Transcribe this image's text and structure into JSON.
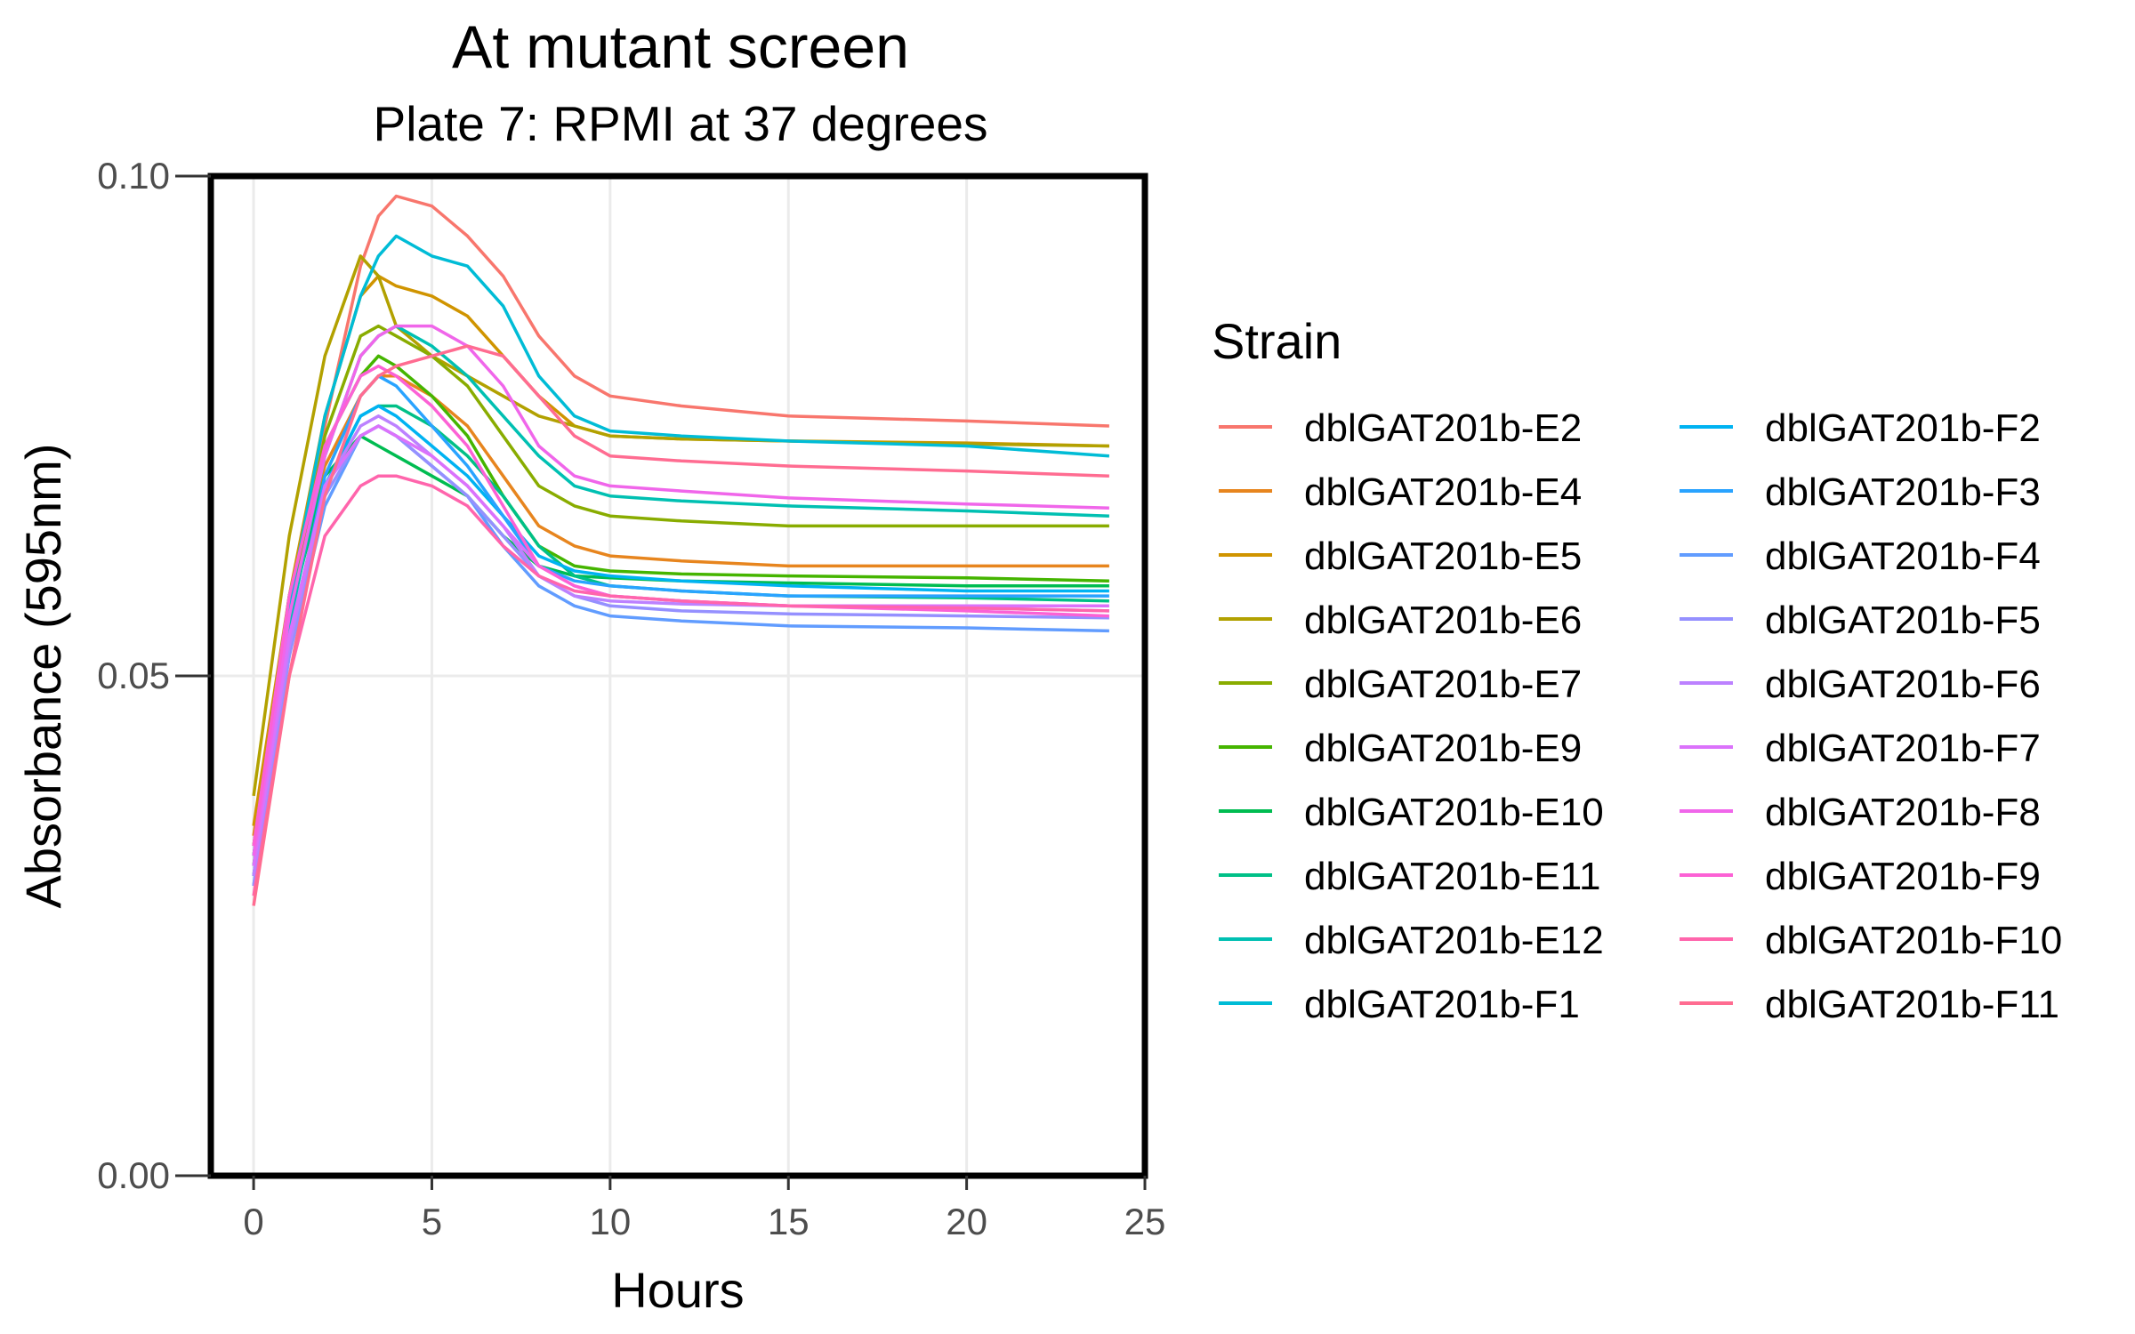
{
  "chart_data": {
    "type": "line",
    "title": "At mutant screen",
    "subtitle": "Plate 7: RPMI at 37 degrees",
    "xlabel": "Hours",
    "ylabel": "Absorbance (595nm)",
    "xlim": [
      -1.2,
      25
    ],
    "ylim": [
      0,
      0.1
    ],
    "x_ticks": [
      0,
      5,
      10,
      15,
      20,
      25
    ],
    "x_tick_labels": [
      "0",
      "5",
      "10",
      "15",
      "20",
      "25"
    ],
    "y_ticks": [
      0,
      0.05,
      0.1
    ],
    "y_tick_labels": [
      "0.00",
      "0.05",
      "0.10"
    ],
    "grid": true,
    "legend_title": "Strain",
    "legend_position": "right",
    "x": [
      0,
      1,
      2,
      3,
      3.5,
      4,
      5,
      6,
      7,
      8,
      9,
      10,
      12,
      15,
      20,
      24
    ],
    "series": [
      {
        "name": "dblGAT201b-E2",
        "color": "#F8766D",
        "values": [
          0.033,
          0.055,
          0.075,
          0.091,
          0.096,
          0.098,
          0.097,
          0.094,
          0.09,
          0.084,
          0.08,
          0.078,
          0.077,
          0.076,
          0.0755,
          0.075
        ]
      },
      {
        "name": "dblGAT201b-E4",
        "color": "#E7851E",
        "values": [
          0.034,
          0.057,
          0.071,
          0.078,
          0.08,
          0.08,
          0.078,
          0.075,
          0.07,
          0.065,
          0.063,
          0.062,
          0.0615,
          0.061,
          0.061,
          0.061
        ]
      },
      {
        "name": "dblGAT201b-E5",
        "color": "#D09400",
        "values": [
          0.035,
          0.058,
          0.076,
          0.088,
          0.09,
          0.089,
          0.088,
          0.086,
          0.082,
          0.078,
          0.075,
          0.074,
          0.0737,
          0.0735,
          0.0733,
          0.073
        ]
      },
      {
        "name": "dblGAT201b-E6",
        "color": "#B2A100",
        "values": [
          0.038,
          0.064,
          0.082,
          0.092,
          0.09,
          0.085,
          0.082,
          0.08,
          0.078,
          0.076,
          0.075,
          0.074,
          0.0737,
          0.0735,
          0.0732,
          0.073
        ]
      },
      {
        "name": "dblGAT201b-E7",
        "color": "#89AC00",
        "values": [
          0.031,
          0.056,
          0.074,
          0.084,
          0.085,
          0.084,
          0.082,
          0.079,
          0.074,
          0.069,
          0.067,
          0.066,
          0.0655,
          0.065,
          0.065,
          0.065
        ]
      },
      {
        "name": "dblGAT201b-E9",
        "color": "#45B500",
        "values": [
          0.033,
          0.058,
          0.073,
          0.08,
          0.082,
          0.081,
          0.078,
          0.074,
          0.068,
          0.063,
          0.061,
          0.0605,
          0.0602,
          0.06,
          0.0598,
          0.0595
        ]
      },
      {
        "name": "dblGAT201b-E10",
        "color": "#00BC51",
        "values": [
          0.032,
          0.056,
          0.07,
          0.074,
          0.073,
          0.072,
          0.07,
          0.068,
          0.064,
          0.061,
          0.06,
          0.0598,
          0.0595,
          0.0593,
          0.059,
          0.059
        ]
      },
      {
        "name": "dblGAT201b-E11",
        "color": "#00C087",
        "values": [
          0.03,
          0.053,
          0.069,
          0.076,
          0.077,
          0.077,
          0.075,
          0.072,
          0.068,
          0.063,
          0.06,
          0.059,
          0.0585,
          0.058,
          0.0578,
          0.0575
        ]
      },
      {
        "name": "dblGAT201b-E12",
        "color": "#00C0B2",
        "values": [
          0.031,
          0.055,
          0.072,
          0.082,
          0.084,
          0.085,
          0.083,
          0.08,
          0.076,
          0.072,
          0.069,
          0.068,
          0.0675,
          0.067,
          0.0665,
          0.066
        ]
      },
      {
        "name": "dblGAT201b-F1",
        "color": "#00BCD6",
        "values": [
          0.032,
          0.057,
          0.076,
          0.088,
          0.092,
          0.094,
          0.092,
          0.091,
          0.087,
          0.08,
          0.076,
          0.0745,
          0.074,
          0.0735,
          0.073,
          0.072
        ]
      },
      {
        "name": "dblGAT201b-F2",
        "color": "#00B3F2",
        "values": [
          0.03,
          0.054,
          0.069,
          0.076,
          0.077,
          0.076,
          0.073,
          0.07,
          0.066,
          0.062,
          0.0605,
          0.06,
          0.0595,
          0.059,
          0.0585,
          0.0585
        ]
      },
      {
        "name": "dblGAT201b-F3",
        "color": "#29A3FF",
        "values": [
          0.029,
          0.053,
          0.07,
          0.078,
          0.08,
          0.079,
          0.075,
          0.071,
          0.066,
          0.061,
          0.0595,
          0.059,
          0.0585,
          0.058,
          0.058,
          0.058
        ]
      },
      {
        "name": "dblGAT201b-F4",
        "color": "#619CFF",
        "values": [
          0.03,
          0.052,
          0.067,
          0.074,
          0.075,
          0.074,
          0.071,
          0.068,
          0.063,
          0.059,
          0.057,
          0.056,
          0.0555,
          0.055,
          0.0548,
          0.0545
        ]
      },
      {
        "name": "dblGAT201b-F5",
        "color": "#9590FF",
        "values": [
          0.029,
          0.052,
          0.068,
          0.074,
          0.075,
          0.074,
          0.071,
          0.068,
          0.064,
          0.06,
          0.058,
          0.057,
          0.0565,
          0.0562,
          0.056,
          0.0558
        ]
      },
      {
        "name": "dblGAT201b-F6",
        "color": "#BC81FF",
        "values": [
          0.03,
          0.053,
          0.069,
          0.075,
          0.076,
          0.075,
          0.072,
          0.069,
          0.065,
          0.06,
          0.058,
          0.0575,
          0.0572,
          0.057,
          0.0568,
          0.0565
        ]
      },
      {
        "name": "dblGAT201b-F7",
        "color": "#DB72FB",
        "values": [
          0.031,
          0.054,
          0.069,
          0.074,
          0.075,
          0.074,
          0.072,
          0.069,
          0.065,
          0.061,
          0.059,
          0.058,
          0.0575,
          0.057,
          0.057,
          0.057
        ]
      },
      {
        "name": "dblGAT201b-F8",
        "color": "#F066EA",
        "values": [
          0.032,
          0.056,
          0.072,
          0.082,
          0.084,
          0.085,
          0.085,
          0.083,
          0.079,
          0.073,
          0.07,
          0.069,
          0.0685,
          0.0678,
          0.0672,
          0.0668
        ]
      },
      {
        "name": "dblGAT201b-F9",
        "color": "#FC61D5",
        "values": [
          0.033,
          0.058,
          0.073,
          0.08,
          0.081,
          0.08,
          0.077,
          0.073,
          0.067,
          0.061,
          0.059,
          0.058,
          0.0575,
          0.057,
          0.0565,
          0.056
        ]
      },
      {
        "name": "dblGAT201b-F10",
        "color": "#FF65AC",
        "values": [
          0.028,
          0.05,
          0.064,
          0.069,
          0.07,
          0.07,
          0.069,
          0.067,
          0.063,
          0.06,
          0.0585,
          0.058,
          0.0575,
          0.057,
          0.0568,
          0.0565
        ]
      },
      {
        "name": "dblGAT201b-F11",
        "color": "#FF6C91",
        "values": [
          0.027,
          0.05,
          0.068,
          0.078,
          0.08,
          0.081,
          0.082,
          0.083,
          0.082,
          0.078,
          0.074,
          0.072,
          0.0715,
          0.071,
          0.0705,
          0.07
        ]
      }
    ]
  }
}
